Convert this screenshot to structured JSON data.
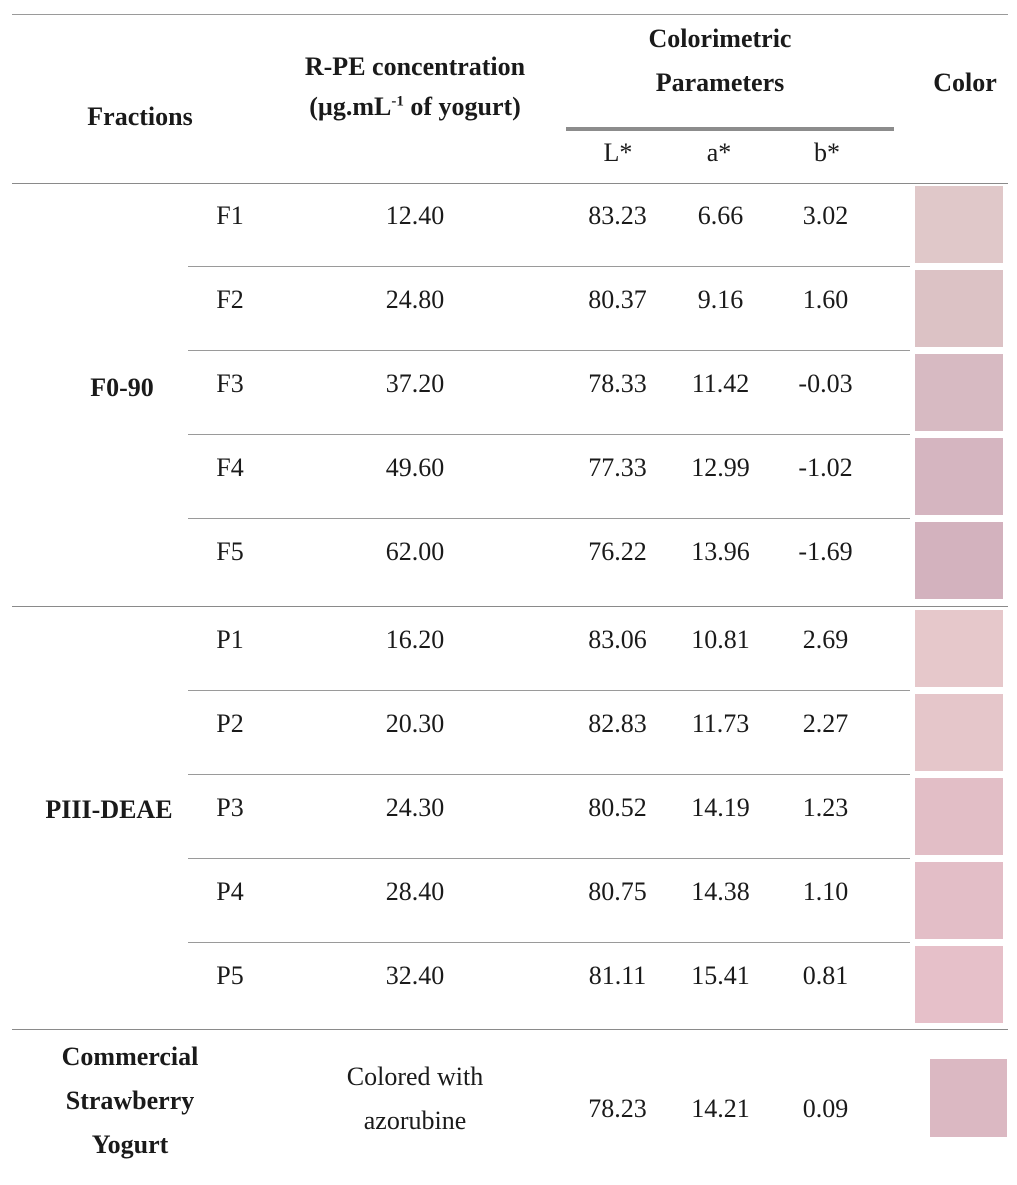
{
  "header": {
    "fractions": "Fractions",
    "conc_line1": "R-PE concentration",
    "conc_line2_pre": "(µg.mL",
    "conc_line2_sup": "-1",
    "conc_line2_post": " of yogurt)",
    "colorimetric_line1": "Colorimetric",
    "colorimetric_line2": "Parameters",
    "color": "Color",
    "L": "L*",
    "a": "a*",
    "b": "b*"
  },
  "groups": [
    {
      "label": "F0-90",
      "rows": [
        {
          "fraction": "F1",
          "concentration": "12.40",
          "L": "83.23",
          "a": "6.66",
          "b": "3.02",
          "swatch": "#e0c8c9"
        },
        {
          "fraction": "F2",
          "concentration": "24.80",
          "L": "80.37",
          "a": "9.16",
          "b": "1.60",
          "swatch": "#dcc2c5"
        },
        {
          "fraction": "F3",
          "concentration": "37.20",
          "L": "78.33",
          "a": "11.42",
          "b": "-0.03",
          "swatch": "#d7bac2"
        },
        {
          "fraction": "F4",
          "concentration": "49.60",
          "L": "77.33",
          "a": "12.99",
          "b": "-1.02",
          "swatch": "#d5b5c0"
        },
        {
          "fraction": "F5",
          "concentration": "62.00",
          "L": "76.22",
          "a": "13.96",
          "b": "-1.69",
          "swatch": "#d3b2be"
        }
      ]
    },
    {
      "label": "PIII-DEAE",
      "rows": [
        {
          "fraction": "P1",
          "concentration": "16.20",
          "L": "83.06",
          "a": "10.81",
          "b": "2.69",
          "swatch": "#e6c8cb"
        },
        {
          "fraction": "P2",
          "concentration": "20.30",
          "L": "82.83",
          "a": "11.73",
          "b": "2.27",
          "swatch": "#e5c6ca"
        },
        {
          "fraction": "P3",
          "concentration": "24.30",
          "L": "80.52",
          "a": "14.19",
          "b": "1.23",
          "swatch": "#e2bec6"
        },
        {
          "fraction": "P4",
          "concentration": "28.40",
          "L": "80.75",
          "a": "14.38",
          "b": "1.10",
          "swatch": "#e3bec7"
        },
        {
          "fraction": "P5",
          "concentration": "32.40",
          "L": "81.11",
          "a": "15.41",
          "b": "0.81",
          "swatch": "#e6c0c9"
        }
      ]
    }
  ],
  "commercial": {
    "label_line1": "Commercial",
    "label_line2": "Strawberry",
    "label_line3": "Yogurt",
    "conc_line1": "Colored with",
    "conc_line2": "azorubine",
    "L": "78.23",
    "a": "14.21",
    "b": "0.09",
    "swatch": "#dbb8c2"
  }
}
